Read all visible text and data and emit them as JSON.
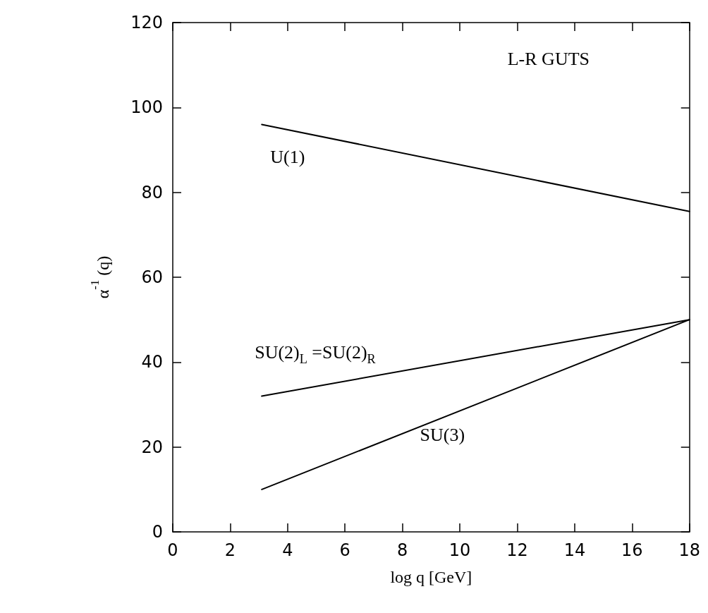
{
  "chart_data": {
    "type": "line",
    "xlabel": "log q [GeV]",
    "ylabel": "α$^{-1}$ (q)",
    "annotations": [
      "L-R GUTS"
    ],
    "x": [
      3.1,
      18
    ],
    "xlim": [
      0,
      18
    ],
    "xticks": [
      0,
      2,
      4,
      6,
      8,
      10,
      12,
      14,
      16,
      18
    ],
    "ylim": [
      0,
      120
    ],
    "yticks": [
      0,
      20,
      40,
      60,
      80,
      100,
      120
    ],
    "grid": false,
    "legend": false,
    "marker": "none",
    "line_style": "solid",
    "series": [
      {
        "name": "U(1)",
        "color": "#000000",
        "values": [
          96,
          75.5
        ]
      },
      {
        "name": "SU(2)$_{L}$ =SU(2)$_{R}$",
        "color": "#000000",
        "values": [
          32,
          50
        ]
      },
      {
        "name": "SU(3)",
        "color": "#000000",
        "values": [
          10,
          50
        ]
      }
    ]
  }
}
